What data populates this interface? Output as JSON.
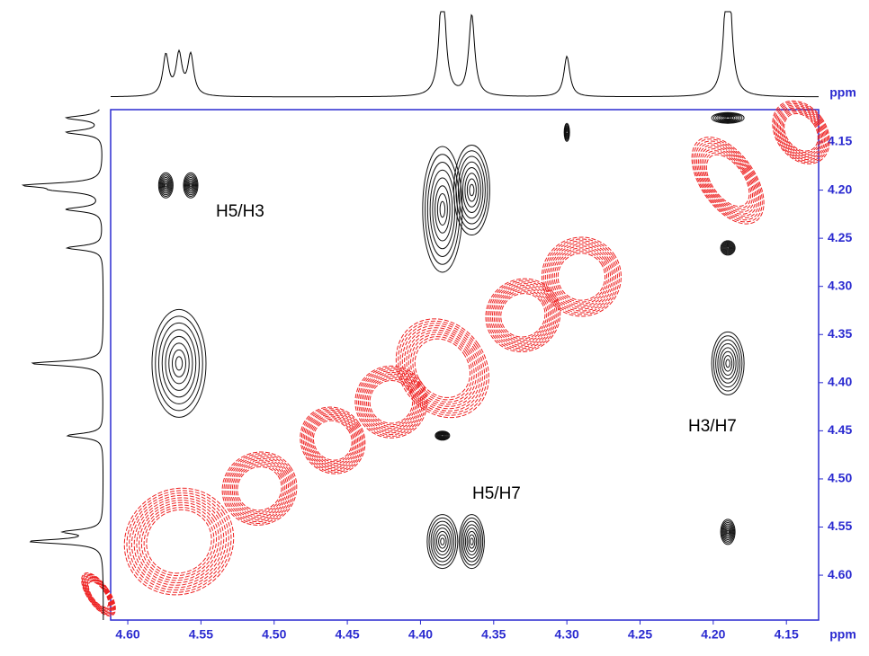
{
  "chart_data": {
    "type": "contour",
    "x_label": "ppm",
    "y_label": "ppm",
    "xlim": [
      4.6117,
      4.128
    ],
    "ylim": [
      4.1164,
      4.6466
    ],
    "xticks": [
      {
        "value": 4.6,
        "label": "4.60"
      },
      {
        "value": 4.55,
        "label": "4.55"
      },
      {
        "value": 4.5,
        "label": "4.50"
      },
      {
        "value": 4.45,
        "label": "4.45"
      },
      {
        "value": 4.4,
        "label": "4.40"
      },
      {
        "value": 4.35,
        "label": "4.35"
      },
      {
        "value": 4.3,
        "label": "4.30"
      },
      {
        "value": 4.25,
        "label": "4.25"
      },
      {
        "value": 4.2,
        "label": "4.20"
      },
      {
        "value": 4.15,
        "label": "4.15"
      }
    ],
    "yticks": [
      {
        "value": 4.15,
        "label": "4.15"
      },
      {
        "value": 4.2,
        "label": "4.20"
      },
      {
        "value": 4.25,
        "label": "4.25"
      },
      {
        "value": 4.3,
        "label": "4.30"
      },
      {
        "value": 4.35,
        "label": "4.35"
      },
      {
        "value": 4.4,
        "label": "4.40"
      },
      {
        "value": 4.45,
        "label": "4.45"
      },
      {
        "value": 4.5,
        "label": "4.50"
      },
      {
        "value": 4.55,
        "label": "4.55"
      },
      {
        "value": 4.6,
        "label": "4.60"
      }
    ],
    "series": [
      {
        "color": "#111111",
        "x": [
          4.574,
          4.557,
          4.565,
          4.385,
          4.365,
          4.385,
          4.365,
          4.19,
          4.19,
          4.19,
          4.385,
          4.3,
          4.19
        ],
        "y": [
          4.195,
          4.195,
          4.38,
          4.22,
          4.2,
          4.565,
          4.565,
          4.38,
          4.555,
          4.26,
          4.455,
          4.14,
          4.125
        ]
      },
      {
        "color": "#ee2222",
        "x": [
          4.62,
          4.565,
          4.51,
          4.46,
          4.42,
          4.385,
          4.33,
          4.29,
          4.19,
          4.14
        ],
        "y": [
          4.62,
          4.565,
          4.51,
          4.46,
          4.42,
          4.385,
          4.33,
          4.29,
          4.19,
          4.14
        ]
      }
    ],
    "annotations": [
      "H5/H3",
      "H3/H7",
      "H5/H7"
    ]
  }
}
